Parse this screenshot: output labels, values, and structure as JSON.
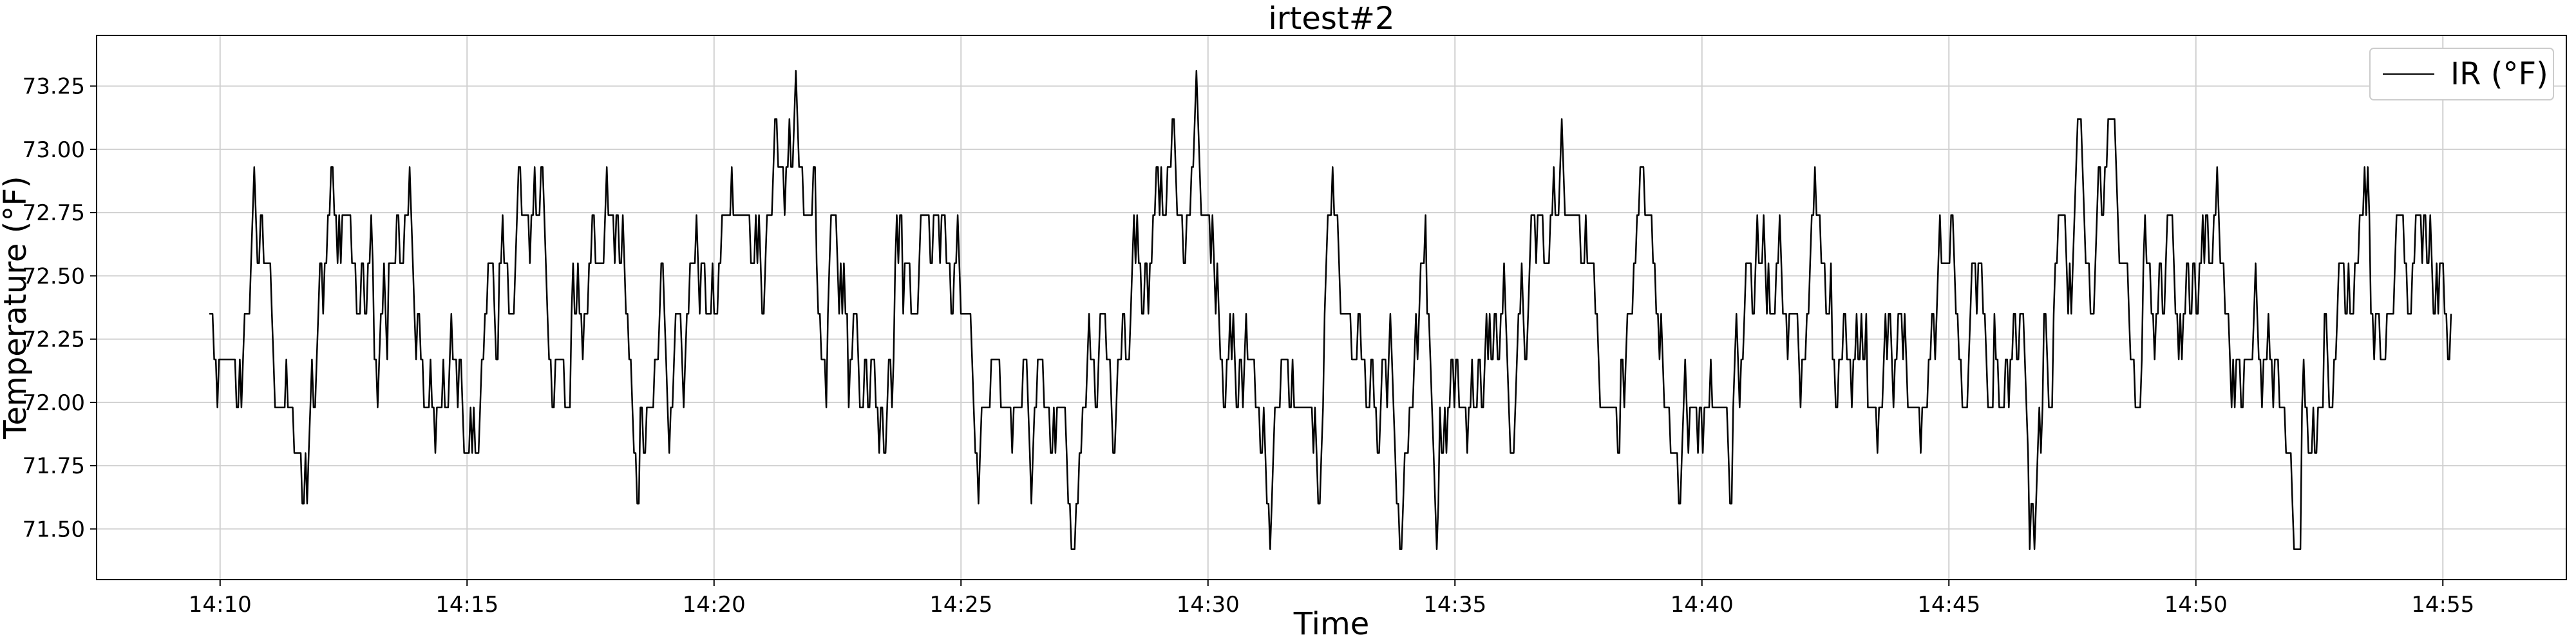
{
  "chart_data": {
    "type": "line",
    "title": "irtest#2",
    "xlabel": "Time",
    "ylabel": "Temperature (°F)",
    "x_ticks": [
      "14:10",
      "14:15",
      "14:20",
      "14:25",
      "14:30",
      "14:35",
      "14:40",
      "14:45",
      "14:50",
      "14:55"
    ],
    "x_tick_minutes": [
      0,
      5,
      10,
      15,
      20,
      25,
      30,
      35,
      40,
      45
    ],
    "xlim_minutes": [
      -2.5,
      47.5
    ],
    "y_ticks": [
      "71.50",
      "71.75",
      "72.00",
      "72.25",
      "72.50",
      "72.75",
      "73.00",
      "73.25"
    ],
    "y_tick_values": [
      71.5,
      71.75,
      72.0,
      72.25,
      72.5,
      72.75,
      73.0,
      73.25
    ],
    "ylim": [
      71.3,
      73.45
    ],
    "grid": true,
    "legend_position": "top-right",
    "series": [
      {
        "name": "IR (°F)",
        "color": "#000000",
        "x_start_time": "14:09:47",
        "x_end_time": "14:55:10",
        "levels": [
          71.42,
          71.6,
          71.8,
          71.98,
          72.17,
          72.35,
          72.55,
          72.74,
          72.93,
          73.12,
          73.31
        ],
        "approximate_range": [
          71.42,
          73.31
        ]
      }
    ]
  }
}
